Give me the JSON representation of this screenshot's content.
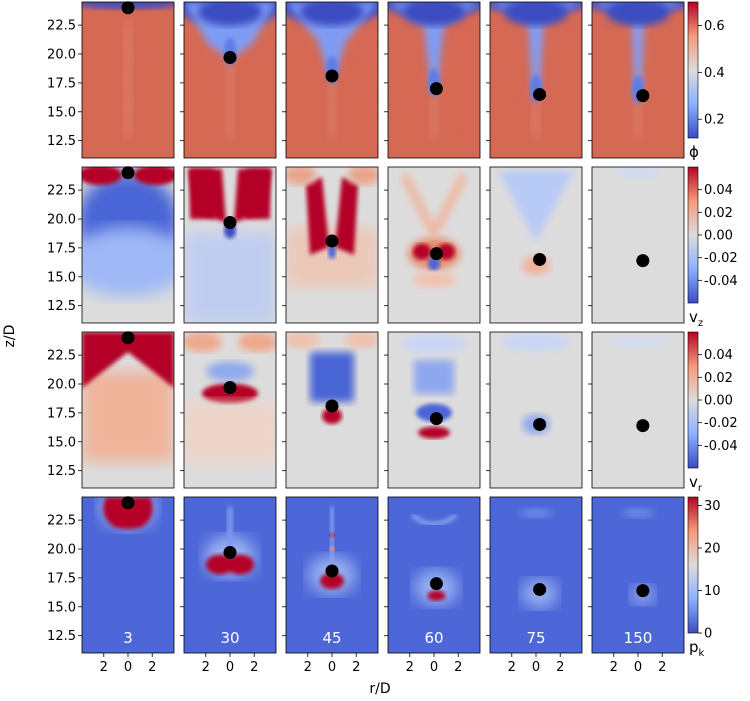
{
  "chart_data": {
    "type": "heatmap",
    "title": "",
    "xlabel": "r/D",
    "ylabel": "z/D",
    "x_tick_labels": [
      "2",
      "0",
      "2"
    ],
    "y_tick_labels": [
      "22.5",
      "20.0",
      "17.5",
      "15.0",
      "12.5"
    ],
    "y_range": [
      11.0,
      24.5
    ],
    "x_range": [
      -3.8,
      3.8
    ],
    "colormap": "coolwarm",
    "columns": [
      {
        "label": "3",
        "particle_r": 0.0,
        "particle_z": 24.0
      },
      {
        "label": "30",
        "particle_r": 0.0,
        "particle_z": 19.7
      },
      {
        "label": "45",
        "particle_r": 0.0,
        "particle_z": 18.1
      },
      {
        "label": "60",
        "particle_r": 0.2,
        "particle_z": 17.0
      },
      {
        "label": "75",
        "particle_r": 0.3,
        "particle_z": 16.5
      },
      {
        "label": "150",
        "particle_r": 0.4,
        "particle_z": 16.4
      }
    ],
    "rows": [
      {
        "variable": "ϕ",
        "colorbar_label": "ϕ",
        "sub": "",
        "vmin": 0.12,
        "vmax": 0.7,
        "ticks": [
          "0.6",
          "0.4",
          "0.2"
        ]
      },
      {
        "variable": "v_z",
        "colorbar_label": "v",
        "sub": "z",
        "vmin": -0.06,
        "vmax": 0.06,
        "ticks": [
          "0.04",
          "0.02",
          "0.00",
          "-0.02",
          "-0.04"
        ]
      },
      {
        "variable": "v_r",
        "colorbar_label": "v",
        "sub": "r",
        "vmin": -0.06,
        "vmax": 0.06,
        "ticks": [
          "0.04",
          "0.02",
          "0.00",
          "-0.02",
          "-0.04"
        ]
      },
      {
        "variable": "p_k",
        "colorbar_label": "p",
        "sub": "k",
        "vmin": 0,
        "vmax": 32,
        "ticks": [
          "30",
          "20",
          "10",
          "0"
        ]
      }
    ]
  }
}
